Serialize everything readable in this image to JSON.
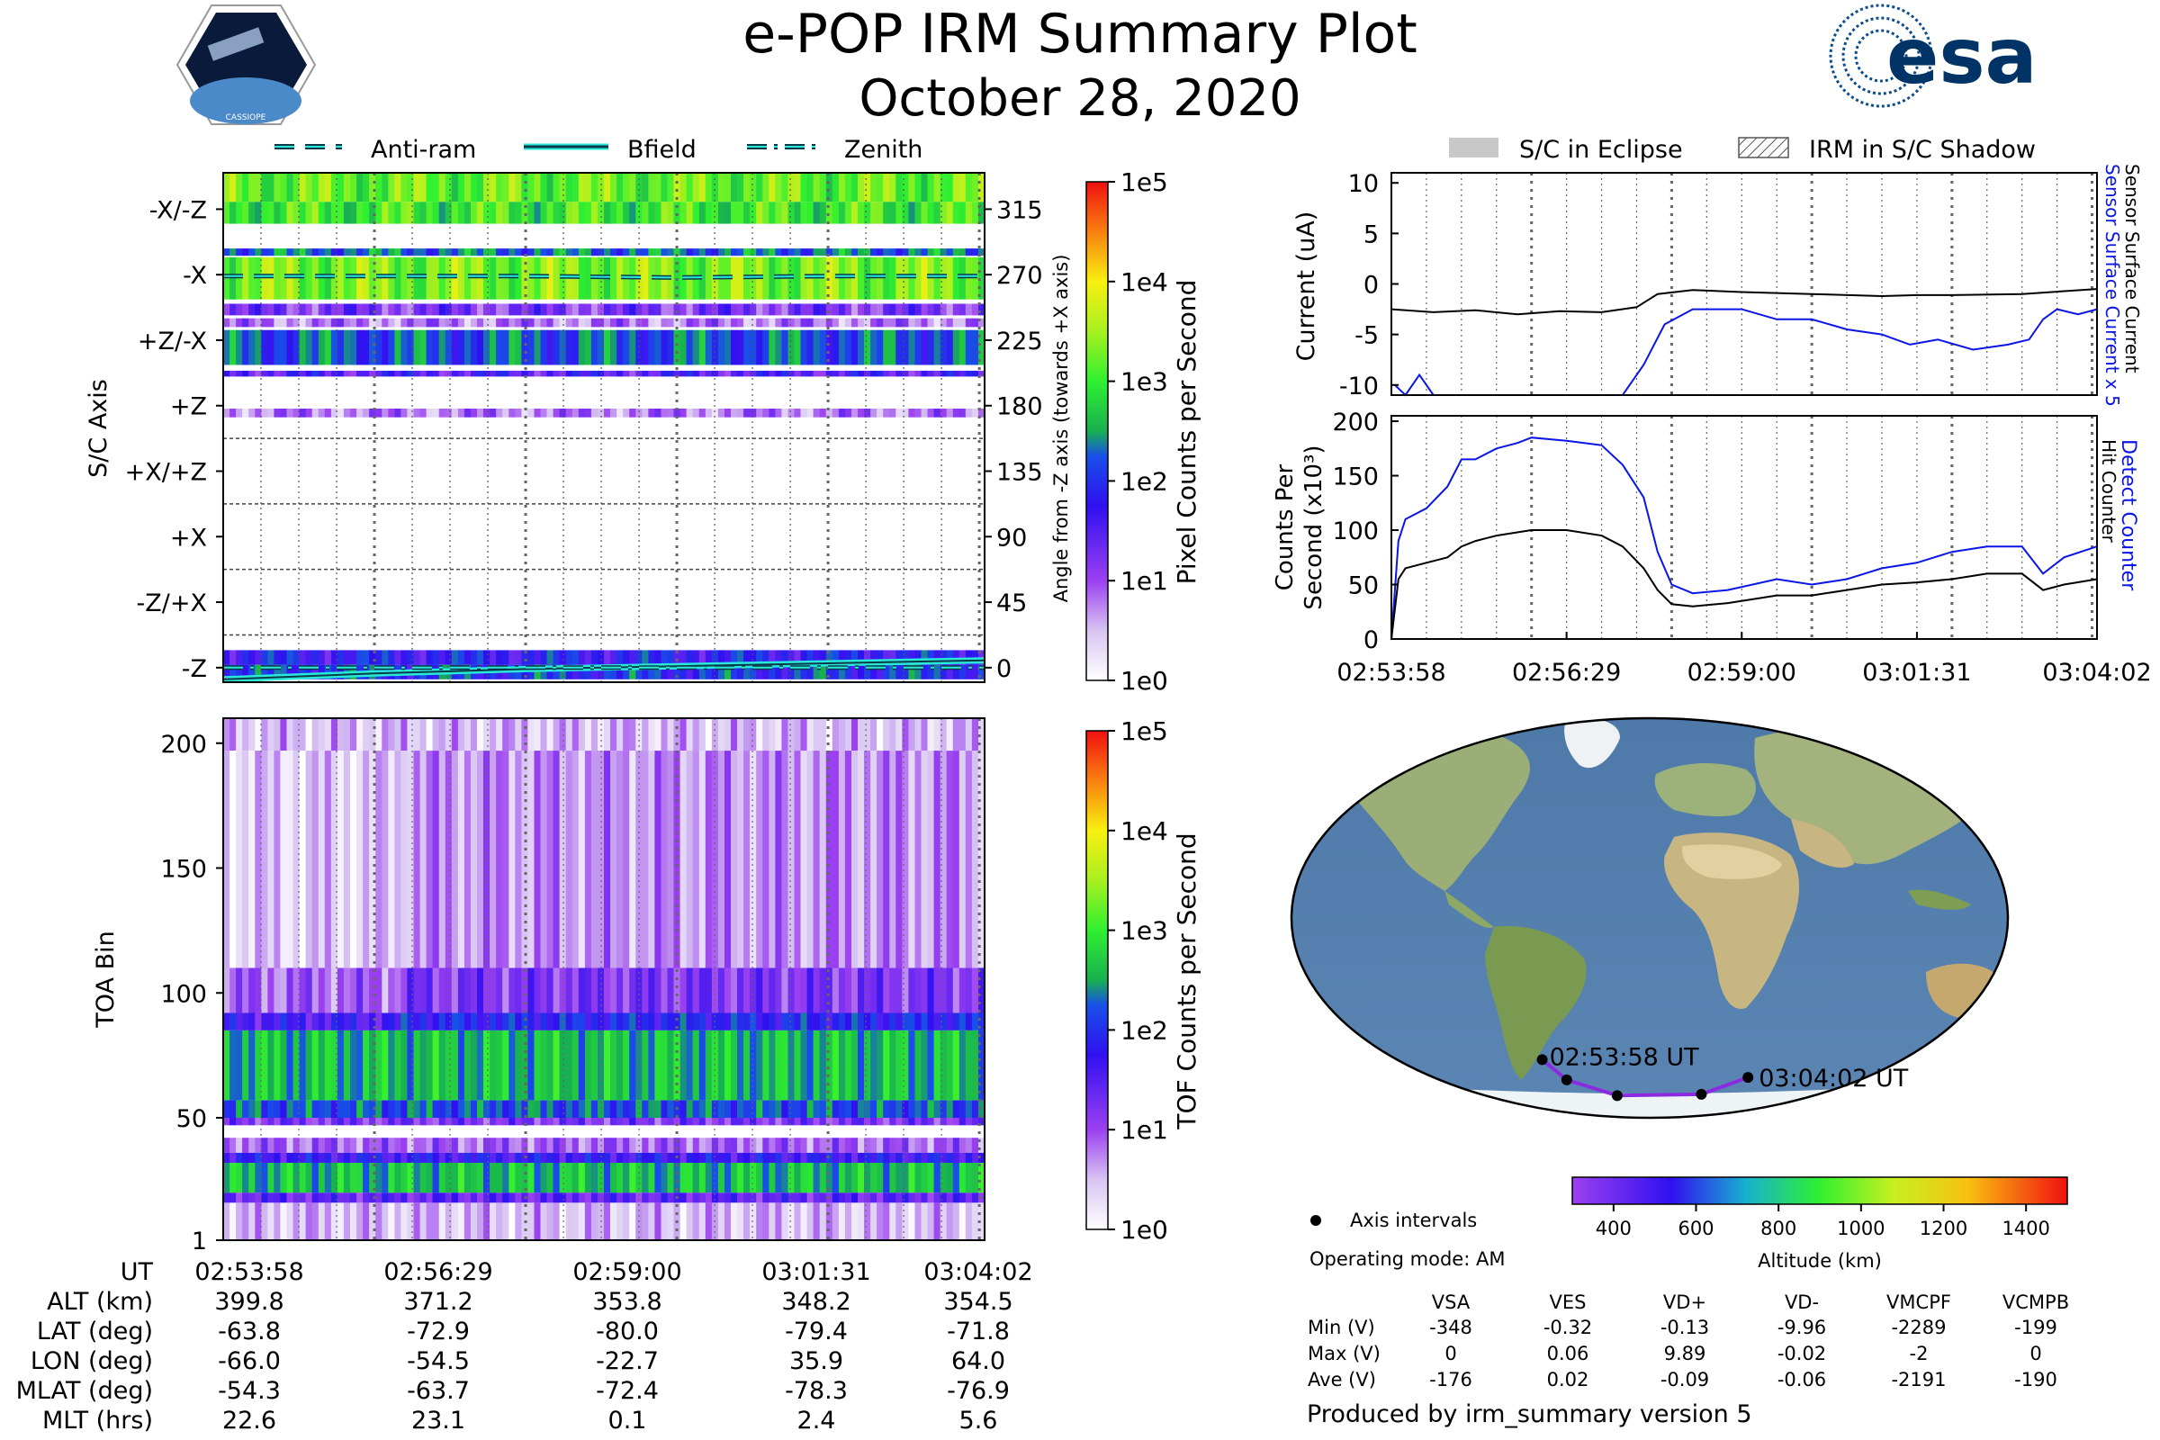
{
  "header": {
    "title": "e-POP IRM Summary Plot",
    "date": "October 28, 2020",
    "left_logo_text": "CASSIOPE",
    "right_logo_text": "esa"
  },
  "colors": {
    "dark_teal": "#0b3a4a",
    "cyan": "#28e8d8",
    "blue": "#0a16e6",
    "purple_path": "#8a2be2"
  },
  "legend_top_left": {
    "items": [
      {
        "label": "Anti-ram",
        "style": "dashed"
      },
      {
        "label": "Bfield",
        "style": "solid"
      },
      {
        "label": "Zenith",
        "style": "dashdot"
      }
    ]
  },
  "legend_top_right": {
    "items": [
      {
        "label": "S/C in Eclipse",
        "style": "gray-box"
      },
      {
        "label": "IRM in S/C Shadow",
        "style": "hatched-box"
      }
    ]
  },
  "footer": {
    "axis_intervals_label": "Axis intervals",
    "operating_mode": "Operating mode: AM",
    "produced_by": "Produced by irm_summary version 5"
  },
  "ephemeris": {
    "rows": [
      {
        "label": "UT",
        "values": [
          "02:53:58",
          "02:56:29",
          "02:59:00",
          "03:01:31",
          "03:04:02"
        ]
      },
      {
        "label": "ALT (km)",
        "values": [
          "399.8",
          "371.2",
          "353.8",
          "348.2",
          "354.5"
        ]
      },
      {
        "label": "LAT (deg)",
        "values": [
          "-63.8",
          "-72.9",
          "-80.0",
          "-79.4",
          "-71.8"
        ]
      },
      {
        "label": "LON (deg)",
        "values": [
          "-66.0",
          "-54.5",
          "-22.7",
          "35.9",
          "64.0"
        ]
      },
      {
        "label": "MLAT (deg)",
        "values": [
          "-54.3",
          "-63.7",
          "-72.4",
          "-78.3",
          "-76.9"
        ]
      },
      {
        "label": "MLT (hrs)",
        "values": [
          "22.6",
          "23.1",
          "0.1",
          "2.4",
          "5.6"
        ]
      }
    ]
  },
  "voltage_table": {
    "columns": [
      "VSA",
      "VES",
      "VD+",
      "VD-",
      "VMCPF",
      "VCMPB"
    ],
    "rows": [
      {
        "label": "Min (V)",
        "values": [
          "-348",
          "-0.32",
          "-0.13",
          "-9.96",
          "-2289",
          "-199"
        ]
      },
      {
        "label": "Max (V)",
        "values": [
          "0",
          "0.06",
          "9.89",
          "-0.02",
          "-2",
          "0"
        ]
      },
      {
        "label": "Ave (V)",
        "values": [
          "-176",
          "0.02",
          "-0.09",
          "-0.06",
          "-2191",
          "-190"
        ]
      }
    ]
  },
  "chart_data": [
    {
      "id": "pixel_counts",
      "type": "heatmap",
      "ylabel": "S/C Axis",
      "ylabel_right": "Angle from -Z axis (towards +X axis)",
      "y_axis_labels": [
        "-X/-Z",
        "-X",
        "+Z/-X",
        "+Z",
        "+X/+Z",
        "+X",
        "-Z/+X",
        "-Z"
      ],
      "angle_ticks": [
        "315",
        "270",
        "225",
        "180",
        "135",
        "90",
        "45",
        "0"
      ],
      "ylim": [
        -10,
        340
      ],
      "colorbar_label": "Pixel Counts per Second",
      "colorbar_ticks": [
        "1e5",
        "1e4",
        "1e3",
        "1e2",
        "1e1",
        "1e0"
      ],
      "bands": [
        {
          "lo": 320,
          "hi": 340,
          "level": 3.2
        },
        {
          "lo": 305,
          "hi": 320,
          "level": 3.0
        },
        {
          "lo": 283,
          "hi": 288,
          "level": 2.3
        },
        {
          "lo": 253,
          "hi": 282,
          "level": 3.3
        },
        {
          "lo": 242,
          "hi": 250,
          "level": 1.2
        },
        {
          "lo": 234,
          "hi": 240,
          "level": 0.8
        },
        {
          "lo": 208,
          "hi": 232,
          "level": 2.2
        },
        {
          "lo": 200,
          "hi": 204,
          "level": 1.5
        },
        {
          "lo": 172,
          "hi": 178,
          "level": 0.8
        },
        {
          "lo": 2,
          "hi": 12,
          "level": 1.8
        },
        {
          "lo": -8,
          "hi": 2,
          "level": 2.0
        }
      ],
      "series": [
        {
          "name": "Anti-ram",
          "x_min": [
            0,
            2,
            4,
            6,
            8,
            10.07
          ],
          "y": [
            269,
            269,
            269,
            268,
            269,
            269
          ]
        },
        {
          "name": "Bfield",
          "x_min": [
            0,
            2,
            4,
            6,
            8,
            10.07
          ],
          "y": [
            -8,
            -4,
            -1,
            1,
            3,
            5
          ]
        },
        {
          "name": "Zenith",
          "x_min": [
            0,
            2,
            4,
            6,
            8,
            10.07
          ],
          "y": [
            0,
            0,
            0,
            0,
            0,
            0
          ]
        }
      ]
    },
    {
      "id": "tof_counts",
      "type": "heatmap",
      "ylabel": "TOA Bin",
      "yticks": [
        "1",
        "50",
        "100",
        "150",
        "200"
      ],
      "ylim": [
        1,
        210
      ],
      "colorbar_label": "TOF Counts per Second",
      "colorbar_ticks": [
        "1e5",
        "1e4",
        "1e3",
        "1e2",
        "1e1",
        "1e0"
      ],
      "bands": [
        {
          "lo": 197,
          "hi": 210,
          "level": 0.5
        },
        {
          "lo": 110,
          "hi": 197,
          "level": 0.4
        },
        {
          "lo": 92,
          "hi": 110,
          "level": 0.9
        },
        {
          "lo": 85,
          "hi": 92,
          "level": 1.6
        },
        {
          "lo": 57,
          "hi": 85,
          "level": 2.6
        },
        {
          "lo": 50,
          "hi": 57,
          "level": 2.2
        },
        {
          "lo": 47,
          "hi": 50,
          "level": 1.2
        },
        {
          "lo": 36,
          "hi": 42,
          "level": 0.9
        },
        {
          "lo": 32,
          "hi": 36,
          "level": 1.7
        },
        {
          "lo": 20,
          "hi": 32,
          "level": 2.6
        },
        {
          "lo": 16,
          "hi": 20,
          "level": 1.4
        },
        {
          "lo": 1,
          "hi": 16,
          "level": 0.5
        }
      ]
    },
    {
      "id": "current",
      "type": "line",
      "ylabel": "Current (uA)",
      "ylabel_right_1": "Sensor Surface Current x 5",
      "ylabel_right_2": "Sensor Surface Current",
      "ylim": [
        -11,
        11
      ],
      "yticks": [
        "10",
        "5",
        "0",
        "-5",
        "-10"
      ],
      "series": [
        {
          "name": "Sensor Surface Current",
          "x_min": [
            0,
            0.6,
            1.2,
            1.8,
            2.4,
            3.0,
            3.5,
            3.8,
            4.3,
            5.0,
            6.0,
            7.0,
            7.5,
            8.0,
            9.0,
            10.07
          ],
          "y": [
            -2.5,
            -2.8,
            -2.6,
            -3.0,
            -2.7,
            -2.8,
            -2.3,
            -1.0,
            -0.6,
            -0.8,
            -1.0,
            -1.2,
            -1.1,
            -1.1,
            -1.0,
            -0.5
          ]
        },
        {
          "name": "Sensor Surface Current x 5",
          "x_min": [
            0.05,
            0.2,
            0.4,
            0.6,
            3.3,
            3.6,
            3.9,
            4.3,
            4.5,
            5.0,
            5.5,
            6.0,
            6.5,
            7.0,
            7.4,
            7.8,
            8.3,
            8.8,
            9.1,
            9.3,
            9.5,
            9.8,
            10.07
          ],
          "y": [
            -10,
            -11,
            -9,
            -11,
            -11,
            -8,
            -4,
            -2.5,
            -2.5,
            -2.5,
            -3.5,
            -3.5,
            -4.5,
            -5.0,
            -6.0,
            -5.5,
            -6.5,
            -6.0,
            -5.5,
            -3.5,
            -2.5,
            -3.0,
            -2.5
          ]
        }
      ]
    },
    {
      "id": "counters",
      "type": "line",
      "ylabel": "Counts Per Second (x10³)",
      "ylabel_right_1": "Detect Counter",
      "ylabel_right_2": "Hit Counter",
      "xticks": [
        "02:53:58",
        "02:56:29",
        "02:59:00",
        "03:01:31",
        "03:04:02"
      ],
      "ylim": [
        0,
        205
      ],
      "yticks": [
        "200",
        "150",
        "100",
        "50",
        "0"
      ],
      "series": [
        {
          "name": "Detect Counter",
          "x_min": [
            0,
            0.1,
            0.2,
            0.5,
            0.8,
            1.0,
            1.2,
            1.5,
            1.8,
            2.0,
            2.5,
            3.0,
            3.3,
            3.6,
            3.8,
            4.0,
            4.3,
            4.8,
            5.5,
            6.0,
            6.5,
            7.0,
            7.5,
            8.0,
            8.5,
            9.0,
            9.3,
            9.6,
            10.07
          ],
          "y": [
            0,
            90,
            110,
            120,
            140,
            165,
            165,
            175,
            180,
            185,
            182,
            178,
            160,
            130,
            80,
            50,
            42,
            45,
            55,
            50,
            55,
            65,
            70,
            80,
            85,
            85,
            60,
            75,
            85
          ]
        },
        {
          "name": "Hit Counter",
          "x_min": [
            0,
            0.1,
            0.2,
            0.5,
            0.8,
            1.0,
            1.2,
            1.5,
            2.0,
            2.5,
            3.0,
            3.3,
            3.6,
            3.8,
            4.0,
            4.3,
            4.8,
            5.5,
            6.0,
            6.5,
            7.0,
            7.5,
            8.0,
            8.5,
            9.0,
            9.3,
            9.6,
            10.07
          ],
          "y": [
            0,
            55,
            65,
            70,
            75,
            85,
            90,
            95,
            100,
            100,
            95,
            85,
            65,
            45,
            32,
            30,
            33,
            40,
            40,
            45,
            50,
            52,
            55,
            60,
            60,
            45,
            50,
            55
          ]
        }
      ]
    },
    {
      "id": "map",
      "type": "scatter",
      "title": "",
      "colorbar_label": "Altitude (km)",
      "colorbar_ticks": [
        "400",
        "600",
        "800",
        "1000",
        "1200",
        "1400"
      ],
      "colorbar_range": [
        300,
        1500
      ],
      "track_lon": [
        -66.0,
        -54.5,
        -22.7,
        35.9,
        64.0
      ],
      "track_lat": [
        -63.8,
        -72.9,
        -80.0,
        -79.4,
        -71.8
      ],
      "start_label": "02:53:58 UT",
      "end_label": "03:04:02 UT"
    }
  ]
}
